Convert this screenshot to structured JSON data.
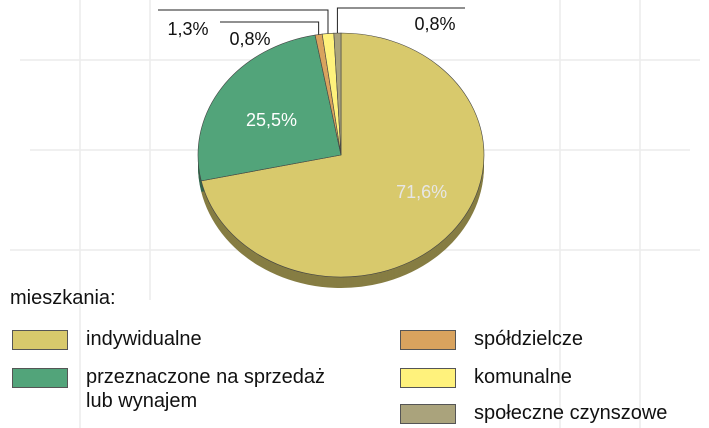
{
  "chart_data": {
    "type": "pie",
    "legend_title": "mieszkania:",
    "categories": [
      "indywidualne",
      "przeznaczone na sprzedaż lub wynajem",
      "spółdzielcze",
      "komunalne",
      "społeczne czynszowe"
    ],
    "values": [
      71.6,
      25.5,
      0.8,
      1.3,
      0.8
    ],
    "value_labels": [
      "71,6%",
      "25,5%",
      "0,8%",
      "1,3%",
      "0,8%"
    ],
    "colors": [
      "#d8c96c",
      "#52a47a",
      "#d9a35e",
      "#fff27c",
      "#aaa37c"
    ]
  }
}
